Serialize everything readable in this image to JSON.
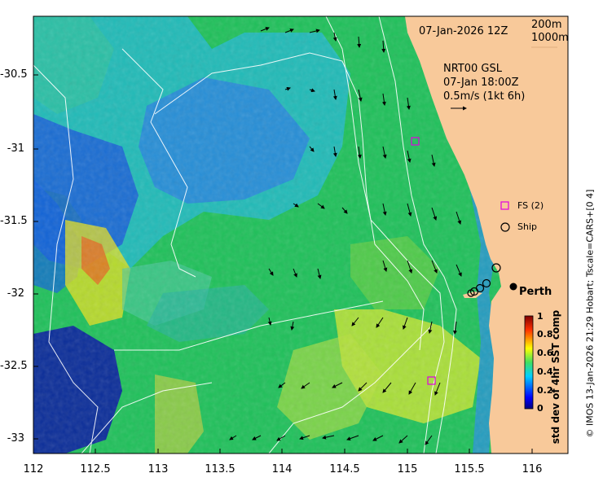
{
  "map": {
    "timestamp": "07-Jan-2026 12Z",
    "isobath_labels": [
      "200m",
      "1000m"
    ],
    "current_model": "NRT00 GSL",
    "current_time": "07-Jan 18:00Z",
    "current_scale": "0.5m/s (1kt 6h)",
    "legend": {
      "fs": "FS (2)",
      "ship": "Ship"
    },
    "city": "Perth",
    "colorbar": {
      "label": "std dev of 4hr SST comp",
      "ticks": [
        "1",
        "0.8",
        "0.6",
        "0.4",
        "0.2",
        "0"
      ]
    },
    "credit": "© IMOS 13-Jan-2026 21:29 Hobart; Tscale=CARS+[0 4]",
    "y_ticks": [
      "-30.5",
      "-31",
      "-31.5",
      "-32",
      "-32.5",
      "-33"
    ],
    "x_ticks": [
      "112",
      "112.5",
      "113",
      "113.5",
      "114",
      "114.5",
      "115",
      "115.5",
      "116"
    ],
    "colors": {
      "land": "#f8c99a",
      "ocean_low": "#00007f",
      "ocean_high": "#7f0000"
    }
  }
}
